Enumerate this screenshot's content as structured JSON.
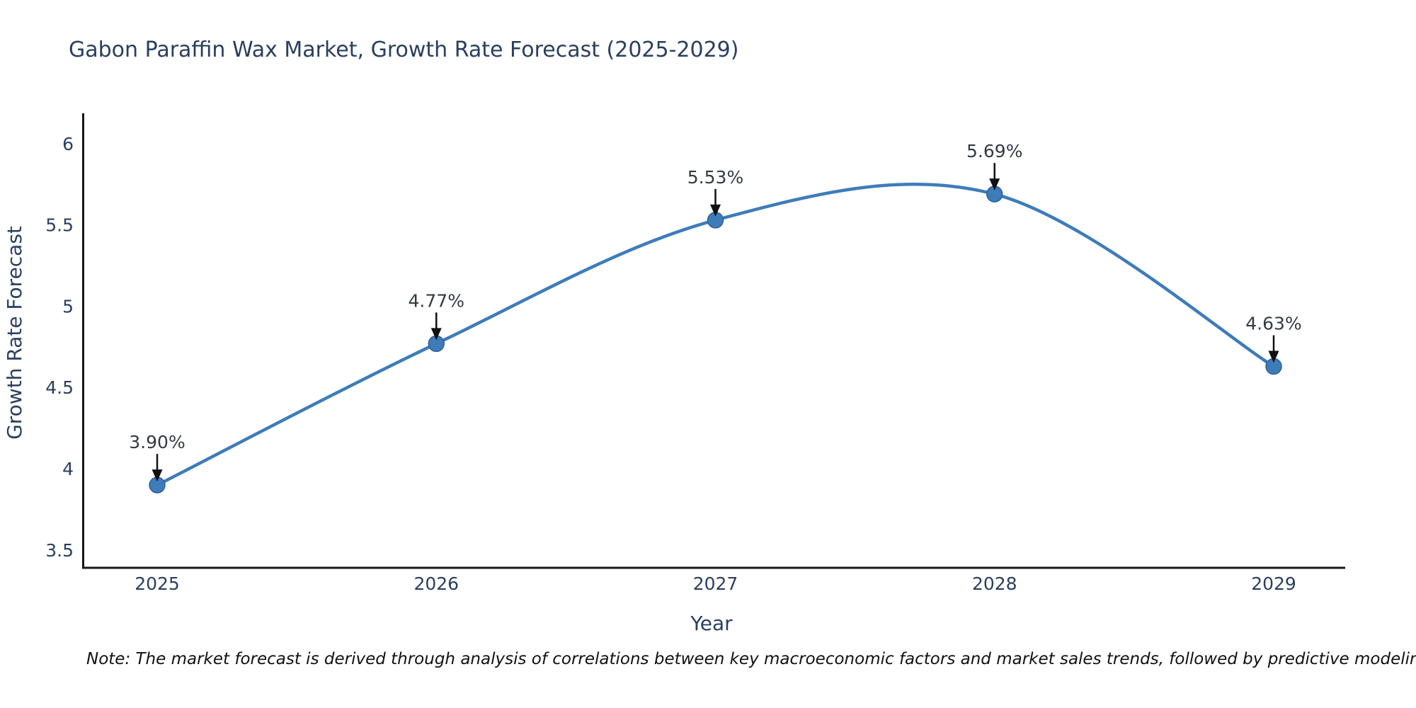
{
  "title": "Gabon Paraffin Wax Market, Growth Rate Forecast (2025-2029)",
  "note": "Note: The market forecast is derived through analysis of correlations between key macroeconomic factors and market sales trends, followed by predictive modeling to project future sales",
  "chart_data": {
    "type": "line",
    "title": "Gabon Paraffin Wax Market, Growth Rate Forecast (2025-2029)",
    "xlabel": "Year",
    "ylabel": "Growth Rate Forecast",
    "categories": [
      "2025",
      "2026",
      "2027",
      "2028",
      "2029"
    ],
    "values": [
      3.9,
      4.77,
      5.53,
      5.69,
      4.63
    ],
    "point_labels": [
      "3.90%",
      "4.77%",
      "5.53%",
      "5.69%",
      "4.63%"
    ],
    "yticks": [
      3.5,
      4,
      4.5,
      5,
      5.5,
      6
    ],
    "ylim": [
      3.39,
      6.19
    ],
    "line_shape": "spline",
    "grid": false,
    "legend": "none",
    "colors": {
      "line": "#3e7cb9",
      "marker": "#3e7cb9",
      "marker_edge": "#2e6396",
      "axis": "#161616",
      "text": "#2a3f5f",
      "annotation_text": "#333a45",
      "arrow": "#111111"
    }
  }
}
